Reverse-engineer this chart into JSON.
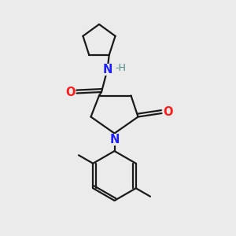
{
  "bg_color": "#ebebeb",
  "bond_color": "#1a1a1a",
  "N_color": "#2020ff",
  "O_color": "#ff1a1a",
  "H_color": "#4a8888",
  "line_width": 1.6,
  "figsize": [
    3.0,
    3.0
  ],
  "dpi": 100,
  "xlim": [
    0,
    10
  ],
  "ylim": [
    0,
    10
  ]
}
